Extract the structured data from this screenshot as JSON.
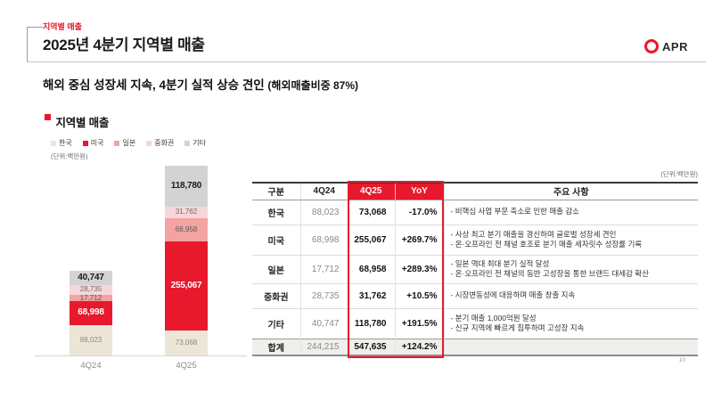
{
  "header": {
    "eyebrow": "지역별 매출",
    "title": "2025년 4분기 지역별 매출",
    "logo_text": "APR",
    "subtitle_main": "해외 중심 성장세 지속, 4분기 실적 상승 견인 ",
    "subtitle_paren": "(해외매출비중 87%)"
  },
  "colors": {
    "brand_red": "#e8192c",
    "total_row_bg": "#f0efec"
  },
  "chart_data": {
    "type": "bar",
    "stacked": true,
    "title": "지역별 매출",
    "unit_label": "(단위:백만원)",
    "categories": [
      "4Q24",
      "4Q25"
    ],
    "series": [
      {
        "name": "한국",
        "color": "#ebe6d8",
        "label_color": "#8f8878",
        "label_bold": false,
        "values": [
          88023,
          73068
        ]
      },
      {
        "name": "미국",
        "color": "#e8192c",
        "label_color": "#ffffff",
        "label_bold": true,
        "values": [
          68998,
          255067
        ]
      },
      {
        "name": "일본",
        "color": "#f3a3a2",
        "label_color": "#5a5a5a",
        "label_bold": false,
        "values": [
          17712,
          68958
        ]
      },
      {
        "name": "중화권",
        "color": "#f7d6d9",
        "label_color": "#6b6b6b",
        "label_bold": false,
        "values": [
          28735,
          31762
        ]
      },
      {
        "name": "기타",
        "color": "#d3d3d3",
        "label_color": "#1a1a1a",
        "label_bold": true,
        "values": [
          40747,
          118780
        ]
      }
    ],
    "totals": [
      244215,
      547635
    ],
    "legend_position": "top",
    "xlabel": "",
    "ylabel": ""
  },
  "table": {
    "unit_label": "(단위:백만원)",
    "columns": [
      "구분",
      "4Q24",
      "4Q25",
      "YoY",
      "주요 사항"
    ],
    "highlight_columns": [
      "4Q25",
      "YoY"
    ],
    "rows": [
      {
        "region": "한국",
        "q4_24": "88,023",
        "q4_25": "73,068",
        "yoy": "-17.0%",
        "notes": [
          "- 비핵심 사업 부문 축소로 인한 매출 감소"
        ]
      },
      {
        "region": "미국",
        "q4_24": "68,998",
        "q4_25": "255,067",
        "yoy": "+269.7%",
        "notes": [
          "- 사상 최고 분기 매출을 경신하며 글로벌 성장세 견인",
          "- 온·오프라인 전 채널 호조로 분기 매출 세자릿수 성장률 기록"
        ]
      },
      {
        "region": "일본",
        "q4_24": "17,712",
        "q4_25": "68,958",
        "yoy": "+289.3%",
        "notes": [
          "- 일본 역대 최대 분기 실적 달성",
          "- 온·오프라인 전 채널의 동반 고성장을 통한 브랜드 대세감 확산"
        ]
      },
      {
        "region": "중화권",
        "q4_24": "28,735",
        "q4_25": "31,762",
        "yoy": "+10.5%",
        "notes": [
          "- 시장변동성에 대응하며 매출 창출 지속"
        ]
      },
      {
        "region": "기타",
        "q4_24": "40,747",
        "q4_25": "118,780",
        "yoy": "+191.5%",
        "notes": [
          "- 분기 매출 1,000억원 달성",
          "- 신규 지역에 빠르게 침투하며 고성장 지속"
        ]
      }
    ],
    "total_row": {
      "region": "합계",
      "q4_24": "244,215",
      "q4_25": "547,635",
      "yoy": "+124.2%",
      "notes": []
    }
  },
  "page_number": "10"
}
